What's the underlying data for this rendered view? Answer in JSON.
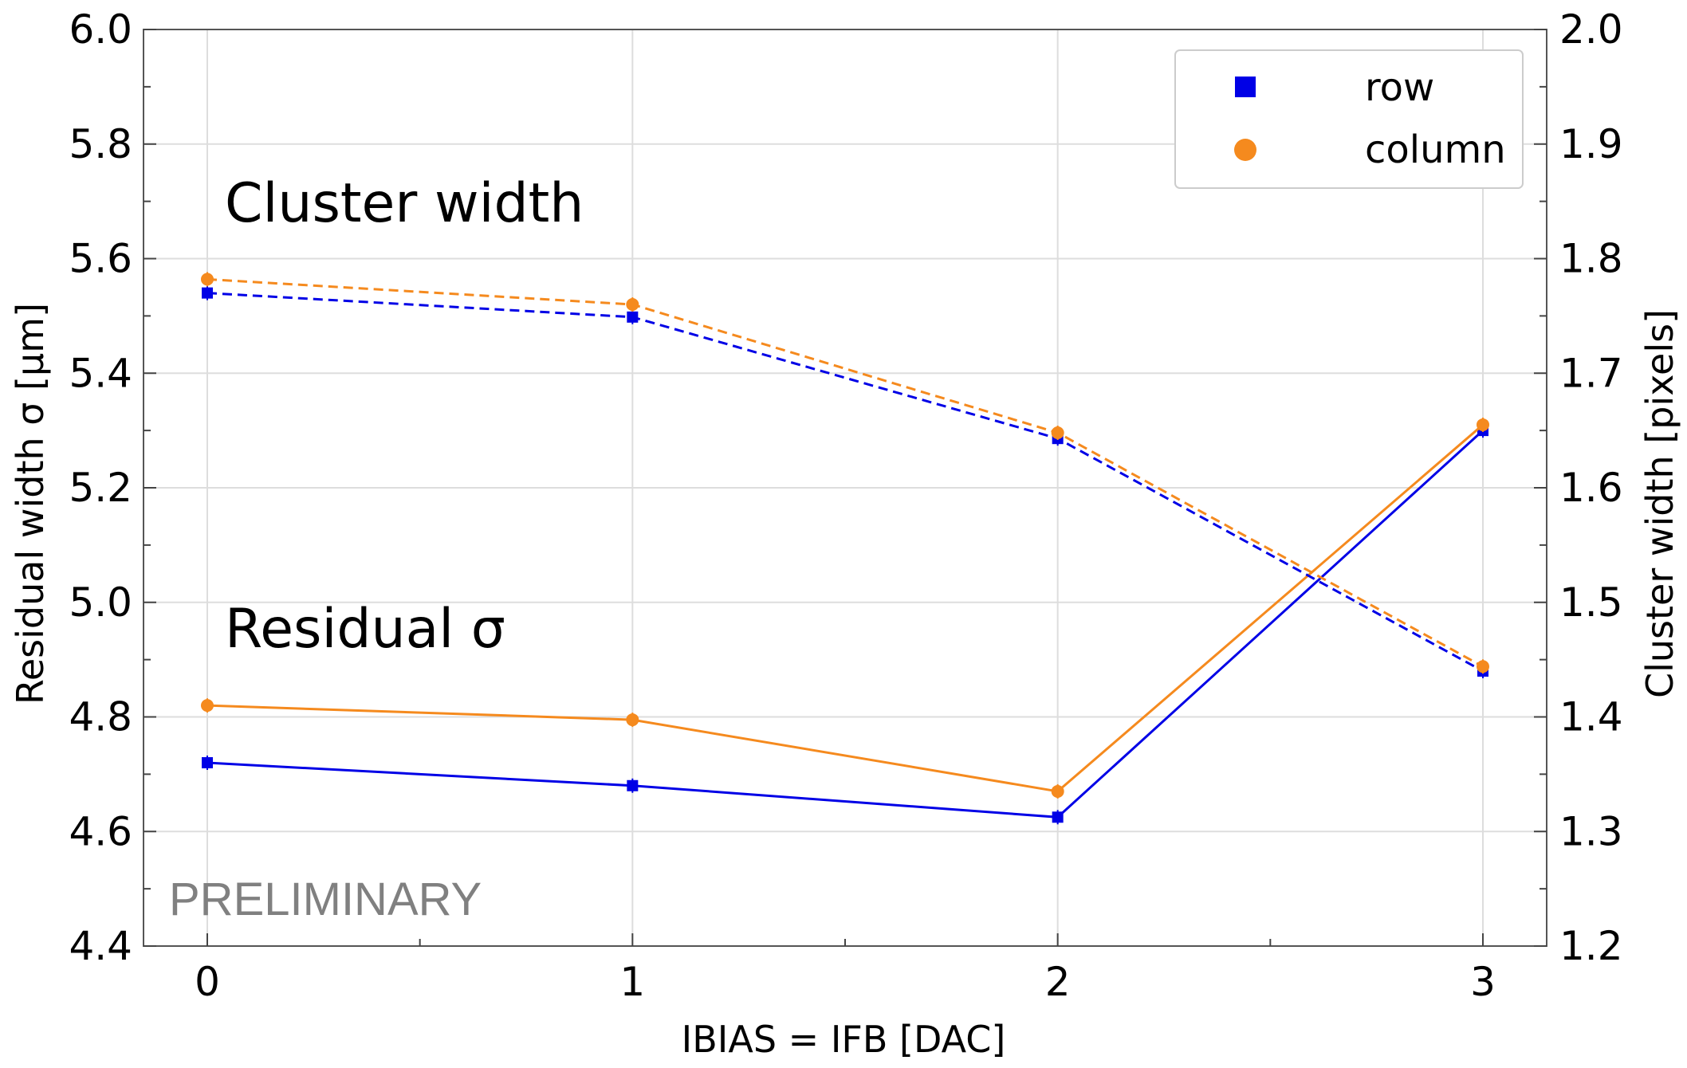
{
  "chart_data": {
    "type": "line",
    "xlabel": "IBIAS = IFB [DAC]",
    "ylabel_left": "Residual width σ [µm]",
    "ylabel_right": "Cluster width [pixels]",
    "x": [
      0,
      1,
      2,
      3
    ],
    "x_ticks": [
      "0",
      "1",
      "2",
      "3"
    ],
    "xlim": [
      -0.15,
      3.15
    ],
    "ylim_left": [
      4.4,
      6.0
    ],
    "ylim_right": [
      1.2,
      2.0
    ],
    "y_ticks_left": [
      "4.4",
      "4.6",
      "4.8",
      "5.0",
      "5.2",
      "5.4",
      "5.6",
      "5.8",
      "6.0"
    ],
    "y_ticks_right": [
      "1.2",
      "1.3",
      "1.4",
      "1.5",
      "1.6",
      "1.7",
      "1.8",
      "1.9",
      "2.0"
    ],
    "grid": true,
    "legend_position": "top-right",
    "series": [
      {
        "name": "row",
        "group": "residual",
        "axis": "left",
        "style": "solid",
        "marker": "square",
        "color": "#0000e6",
        "values": [
          4.72,
          4.68,
          4.625,
          5.3
        ]
      },
      {
        "name": "column",
        "group": "residual",
        "axis": "left",
        "style": "solid",
        "marker": "circle",
        "color": "#f58a1e",
        "values": [
          4.82,
          4.795,
          4.67,
          5.31
        ]
      },
      {
        "name": "row",
        "group": "cluster",
        "axis": "right",
        "style": "dashed",
        "marker": "square",
        "color": "#0000e6",
        "values": [
          1.77,
          1.749,
          1.643,
          1.44
        ]
      },
      {
        "name": "column",
        "group": "cluster",
        "axis": "right",
        "style": "dashed",
        "marker": "circle",
        "color": "#f58a1e",
        "values": [
          1.782,
          1.76,
          1.648,
          1.444
        ]
      }
    ],
    "legend": [
      {
        "label": "row",
        "marker": "square",
        "color": "#0000e6"
      },
      {
        "label": "column",
        "marker": "circle",
        "color": "#f58a1e"
      }
    ],
    "annotations": {
      "cluster_width": "Cluster width",
      "residual": "Residual σ",
      "watermark": "PRELIMINARY"
    }
  }
}
